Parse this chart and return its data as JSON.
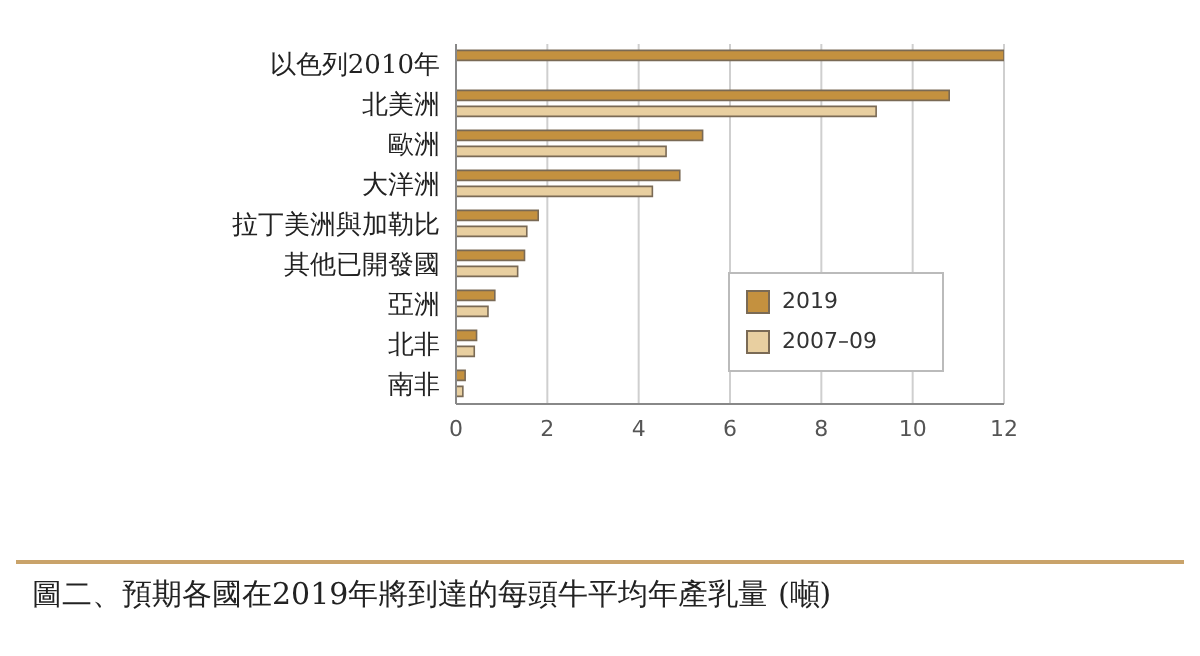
{
  "chart_data": {
    "type": "bar",
    "orientation": "horizontal",
    "title": "圖二、預期各國在2019年將到達的每頭牛平均年產乳量 (噸)",
    "categories": [
      "以色列2010年",
      "北美洲",
      "歐洲",
      "大洋洲",
      "拉丁美洲與加勒比",
      "其他已開發國",
      "亞洲",
      "北非",
      "南非"
    ],
    "series": [
      {
        "name": "2019",
        "color": "#c4913f",
        "values": [
          12,
          10.8,
          5.4,
          4.9,
          1.8,
          1.5,
          0.85,
          0.45,
          0.2
        ]
      },
      {
        "name": "2007–09",
        "color": "#e8cfa0",
        "values": [
          null,
          9.2,
          4.6,
          4.3,
          1.55,
          1.35,
          0.7,
          0.4,
          0.15
        ]
      }
    ],
    "xlim": [
      0,
      12
    ],
    "xticks": [
      0,
      2,
      4,
      6,
      8,
      10,
      12
    ],
    "grid": "x",
    "legend": "bottom right"
  }
}
